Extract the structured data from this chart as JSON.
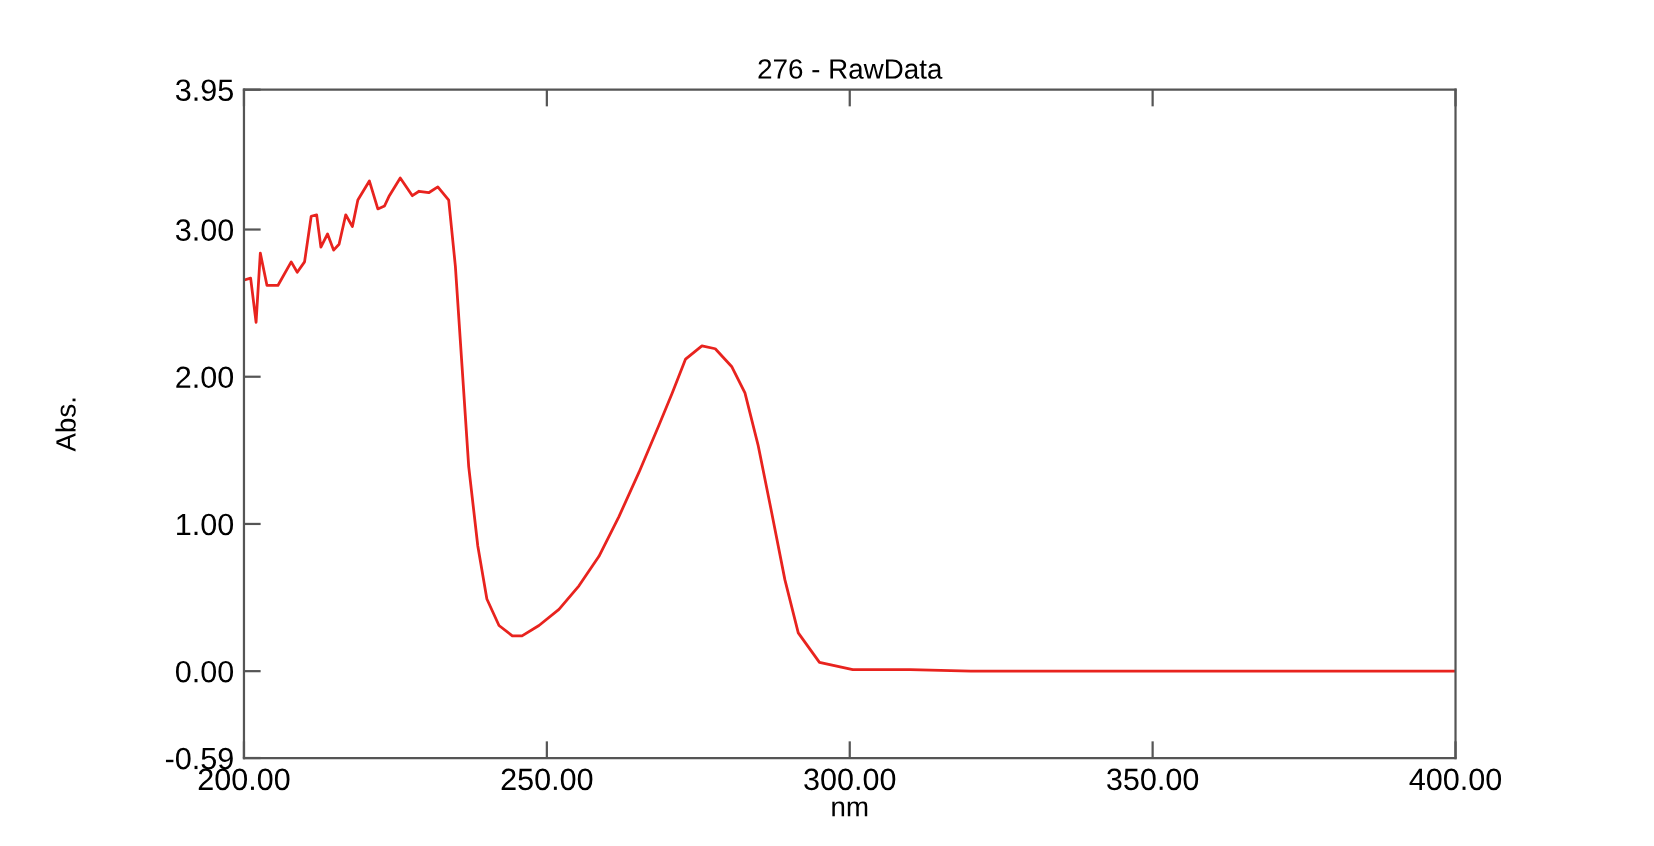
{
  "chart_data": {
    "type": "line",
    "title": "276 - RawData",
    "xlabel": "nm",
    "ylabel": "Abs.",
    "xlim": [
      200,
      400
    ],
    "ylim": [
      -0.59,
      3.95
    ],
    "xticks": [
      {
        "value": 200,
        "label": "200.00"
      },
      {
        "value": 250,
        "label": "250.00"
      },
      {
        "value": 300,
        "label": "300.00"
      },
      {
        "value": 350,
        "label": "350.00"
      },
      {
        "value": 400,
        "label": "400.00"
      }
    ],
    "yticks": [
      {
        "value": -0.59,
        "label": "-0.59"
      },
      {
        "value": 0,
        "label": "0.00"
      },
      {
        "value": 1,
        "label": "1.00"
      },
      {
        "value": 2,
        "label": "2.00"
      },
      {
        "value": 3,
        "label": "3.00"
      },
      {
        "value": 3.95,
        "label": "3.95"
      }
    ],
    "grid": false,
    "legend": false,
    "line_style": "solid",
    "series": [
      {
        "color": "#e8231e",
        "x": [
          200.3,
          201.1,
          202,
          202.7,
          203.8,
          205.6,
          207.8,
          208.8,
          210,
          211.1,
          212,
          212.7,
          213.8,
          214.8,
          215.7,
          216.8,
          217.9,
          218.8,
          220.7,
          222.1,
          223.2,
          224,
          225.8,
          227.8,
          228.9,
          230.5,
          232,
          233.8,
          234.9,
          236,
          237.1,
          238.6,
          240.1,
          242.1,
          244.3,
          245.9,
          248.7,
          252,
          255.3,
          258.6,
          261.9,
          265.2,
          268.5,
          270.7,
          272.9,
          275.6,
          277.8,
          280.5,
          282.7,
          284.9,
          287.1,
          289.3,
          291.5,
          295,
          300.5,
          310,
          320,
          340,
          360,
          380,
          400
        ],
        "values": [
          2.66,
          2.67,
          2.37,
          2.84,
          2.62,
          2.62,
          2.78,
          2.71,
          2.78,
          3.09,
          3.1,
          2.88,
          2.97,
          2.86,
          2.9,
          3.1,
          3.02,
          3.2,
          3.33,
          3.14,
          3.16,
          3.23,
          3.35,
          3.23,
          3.26,
          3.25,
          3.29,
          3.2,
          2.75,
          2.07,
          1.39,
          0.85,
          0.49,
          0.31,
          0.24,
          0.24,
          0.31,
          0.42,
          0.58,
          0.78,
          1.05,
          1.35,
          1.67,
          1.89,
          2.12,
          2.21,
          2.19,
          2.07,
          1.89,
          1.53,
          1.08,
          0.62,
          0.26,
          0.06,
          0.01,
          0.01,
          0,
          0,
          0,
          0,
          0
        ]
      }
    ]
  }
}
